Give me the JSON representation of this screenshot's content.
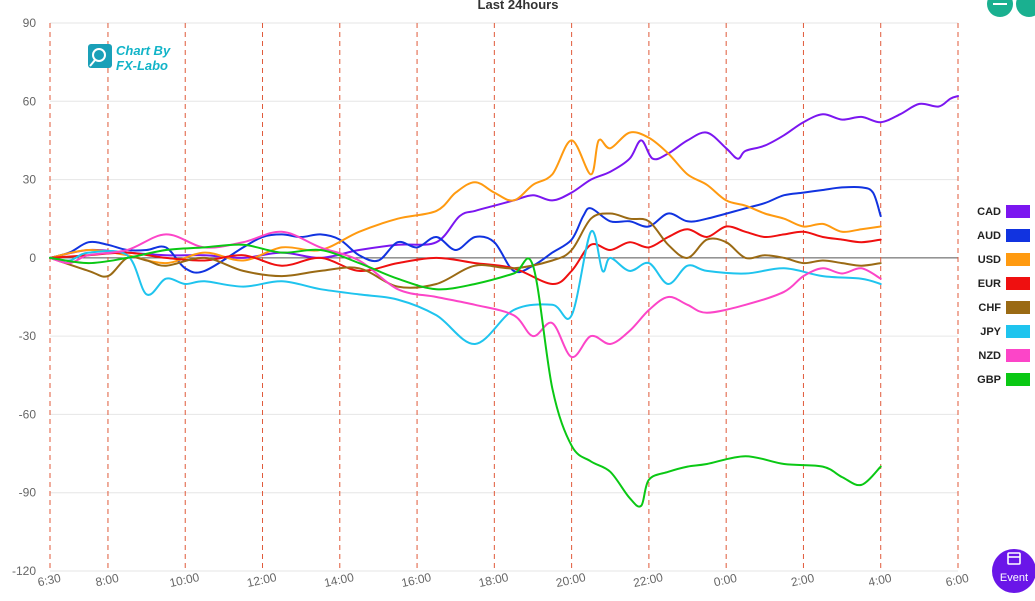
{
  "chart_data": {
    "type": "line",
    "title": "Last 24hours",
    "ylim": [
      -120,
      90
    ],
    "y_ticks": [
      90,
      60,
      30,
      0,
      -30,
      -60,
      -90,
      -120
    ],
    "y_tick_labels": [
      "90",
      "60",
      "30",
      "0",
      "-30",
      "-60",
      "-90",
      "-120"
    ],
    "x_ticks": [
      0,
      1.5,
      3.5,
      5.5,
      7.5,
      9.5,
      11.5,
      13.5,
      15.5,
      17.5,
      19.5,
      21.5,
      23.5
    ],
    "x_tick_labels": [
      "6:30",
      "8:00",
      "10:00",
      "12:00",
      "14:00",
      "16:00",
      "18:00",
      "20:00",
      "22:00",
      "0:00",
      "2:00",
      "4:00",
      "6:00"
    ],
    "grid": true,
    "legend_position": "right",
    "series": [
      {
        "name": "CAD",
        "color": "#7b16f0",
        "values": [
          [
            0,
            0
          ],
          [
            1,
            3
          ],
          [
            2,
            2
          ],
          [
            3,
            1
          ],
          [
            4,
            1
          ],
          [
            5,
            0
          ],
          [
            6,
            2
          ],
          [
            7,
            0
          ],
          [
            8,
            3
          ],
          [
            9,
            5
          ],
          [
            10,
            6
          ],
          [
            10.6,
            16
          ],
          [
            11,
            18
          ],
          [
            11.5,
            20
          ],
          [
            12,
            22
          ],
          [
            12.5,
            24
          ],
          [
            13,
            22
          ],
          [
            13.5,
            25
          ],
          [
            14,
            30
          ],
          [
            14.5,
            33
          ],
          [
            15,
            38
          ],
          [
            15.3,
            45
          ],
          [
            15.6,
            38
          ],
          [
            16,
            40
          ],
          [
            16.5,
            45
          ],
          [
            17,
            48
          ],
          [
            17.5,
            42
          ],
          [
            17.8,
            38
          ],
          [
            18,
            41
          ],
          [
            18.5,
            43
          ],
          [
            19,
            47
          ],
          [
            19.5,
            52
          ],
          [
            20,
            55
          ],
          [
            20.5,
            53
          ],
          [
            21,
            54
          ],
          [
            21.5,
            52
          ],
          [
            22,
            55
          ],
          [
            22.5,
            59
          ],
          [
            23,
            58
          ],
          [
            23.3,
            61
          ],
          [
            23.5,
            62
          ]
        ]
      },
      {
        "name": "AUD",
        "color": "#1133e0",
        "values": [
          [
            0,
            0
          ],
          [
            0.5,
            2
          ],
          [
            1,
            6
          ],
          [
            1.5,
            5
          ],
          [
            2,
            3
          ],
          [
            2.5,
            3
          ],
          [
            3,
            4
          ],
          [
            3.5,
            -4
          ],
          [
            4,
            -5
          ],
          [
            5,
            4
          ],
          [
            5.5,
            8
          ],
          [
            6,
            9
          ],
          [
            6.5,
            8
          ],
          [
            7,
            9
          ],
          [
            7.5,
            7
          ],
          [
            8,
            1
          ],
          [
            8.5,
            -1
          ],
          [
            9,
            6
          ],
          [
            9.5,
            4
          ],
          [
            10,
            8
          ],
          [
            10.5,
            3
          ],
          [
            11,
            8
          ],
          [
            11.5,
            6
          ],
          [
            12,
            -5
          ],
          [
            12.5,
            -3
          ],
          [
            13,
            2
          ],
          [
            13.5,
            7
          ],
          [
            13.8,
            16
          ],
          [
            14,
            19
          ],
          [
            14.5,
            14
          ],
          [
            15,
            14
          ],
          [
            15.5,
            12
          ],
          [
            16,
            17
          ],
          [
            16.5,
            14
          ],
          [
            17,
            15
          ],
          [
            18,
            19
          ],
          [
            18.5,
            21
          ],
          [
            19,
            24
          ],
          [
            19.5,
            25
          ],
          [
            20,
            26
          ],
          [
            20.5,
            27
          ],
          [
            21,
            27
          ],
          [
            21.3,
            25
          ],
          [
            21.5,
            16
          ]
        ]
      },
      {
        "name": "USD",
        "color": "#ff9a10",
        "values": [
          [
            0,
            0
          ],
          [
            1,
            3
          ],
          [
            2,
            1
          ],
          [
            3,
            -2
          ],
          [
            4,
            2
          ],
          [
            5,
            -1
          ],
          [
            6,
            4
          ],
          [
            7,
            3
          ],
          [
            8,
            10
          ],
          [
            9,
            15
          ],
          [
            10,
            18
          ],
          [
            10.5,
            25
          ],
          [
            11,
            29
          ],
          [
            11.5,
            25
          ],
          [
            12,
            22
          ],
          [
            12.5,
            28
          ],
          [
            13,
            32
          ],
          [
            13.5,
            45
          ],
          [
            14,
            32
          ],
          [
            14.2,
            45
          ],
          [
            14.5,
            42
          ],
          [
            15,
            48
          ],
          [
            15.5,
            46
          ],
          [
            16,
            40
          ],
          [
            16.5,
            32
          ],
          [
            17,
            28
          ],
          [
            17.5,
            22
          ],
          [
            18,
            20
          ],
          [
            18.5,
            17
          ],
          [
            19,
            15
          ],
          [
            19.5,
            12
          ],
          [
            20,
            13
          ],
          [
            20.5,
            10
          ],
          [
            21,
            11
          ],
          [
            21.5,
            12
          ]
        ]
      },
      {
        "name": "EUR",
        "color": "#ef1010",
        "values": [
          [
            0,
            0
          ],
          [
            1,
            1
          ],
          [
            2,
            2
          ],
          [
            3,
            0
          ],
          [
            4,
            -1
          ],
          [
            5,
            1
          ],
          [
            6,
            -3
          ],
          [
            7,
            0
          ],
          [
            8,
            -5
          ],
          [
            9,
            -2
          ],
          [
            10,
            0
          ],
          [
            11,
            -2
          ],
          [
            12,
            -4
          ],
          [
            13,
            -10
          ],
          [
            13.5,
            -5
          ],
          [
            14,
            5
          ],
          [
            14.5,
            3
          ],
          [
            15,
            6
          ],
          [
            15.5,
            4
          ],
          [
            16,
            8
          ],
          [
            16.5,
            11
          ],
          [
            17,
            8
          ],
          [
            17.5,
            12
          ],
          [
            18,
            10
          ],
          [
            18.5,
            8
          ],
          [
            19,
            9
          ],
          [
            19.5,
            10
          ],
          [
            20,
            8
          ],
          [
            20.5,
            7
          ],
          [
            21,
            6
          ],
          [
            21.5,
            7
          ]
        ]
      },
      {
        "name": "CHF",
        "color": "#9a6a14",
        "values": [
          [
            0,
            0
          ],
          [
            1,
            -5
          ],
          [
            1.5,
            -7
          ],
          [
            2,
            0
          ],
          [
            2.5,
            -1
          ],
          [
            3,
            -3
          ],
          [
            4,
            0
          ],
          [
            5,
            -5
          ],
          [
            6,
            -7
          ],
          [
            7,
            -5
          ],
          [
            8,
            -4
          ],
          [
            9,
            -11
          ],
          [
            10,
            -10
          ],
          [
            11,
            -3
          ],
          [
            12,
            -4
          ],
          [
            13,
            -1
          ],
          [
            13.5,
            3
          ],
          [
            14,
            15
          ],
          [
            14.5,
            17
          ],
          [
            15,
            15
          ],
          [
            15.5,
            14
          ],
          [
            16,
            5
          ],
          [
            16.5,
            0
          ],
          [
            17,
            7
          ],
          [
            17.5,
            6
          ],
          [
            18,
            0
          ],
          [
            18.5,
            1
          ],
          [
            19,
            0
          ],
          [
            19.5,
            -2
          ],
          [
            20,
            -1
          ],
          [
            20.5,
            -2
          ],
          [
            21,
            -3
          ],
          [
            21.5,
            -2
          ]
        ]
      },
      {
        "name": "JPY",
        "color": "#1fc4ee",
        "values": [
          [
            0,
            0
          ],
          [
            0.5,
            -1
          ],
          [
            1,
            2
          ],
          [
            2,
            1
          ],
          [
            2.5,
            -14
          ],
          [
            3,
            -8
          ],
          [
            3.5,
            -10
          ],
          [
            4,
            -9
          ],
          [
            5,
            -11
          ],
          [
            6,
            -9
          ],
          [
            7,
            -12
          ],
          [
            8,
            -14
          ],
          [
            9,
            -16
          ],
          [
            10,
            -22
          ],
          [
            11,
            -33
          ],
          [
            12,
            -20
          ],
          [
            13,
            -18
          ],
          [
            13.5,
            -22
          ],
          [
            14,
            10
          ],
          [
            14.3,
            -5
          ],
          [
            14.5,
            0
          ],
          [
            15,
            -5
          ],
          [
            15.5,
            -2
          ],
          [
            16,
            -10
          ],
          [
            16.5,
            -3
          ],
          [
            17,
            -5
          ],
          [
            18,
            -6
          ],
          [
            19,
            -4
          ],
          [
            20,
            -7
          ],
          [
            21,
            -8
          ],
          [
            21.5,
            -10
          ]
        ]
      },
      {
        "name": "NZD",
        "color": "#fc45c8",
        "values": [
          [
            0,
            0
          ],
          [
            0.5,
            -2
          ],
          [
            1,
            1
          ],
          [
            2,
            3
          ],
          [
            3,
            9
          ],
          [
            4,
            4
          ],
          [
            5,
            6
          ],
          [
            6,
            10
          ],
          [
            7,
            4
          ],
          [
            8,
            -1
          ],
          [
            9,
            -12
          ],
          [
            10,
            -15
          ],
          [
            11,
            -18
          ],
          [
            12,
            -22
          ],
          [
            12.5,
            -30
          ],
          [
            13,
            -25
          ],
          [
            13.5,
            -38
          ],
          [
            14,
            -30
          ],
          [
            14.5,
            -33
          ],
          [
            15,
            -28
          ],
          [
            15.5,
            -20
          ],
          [
            16,
            -15
          ],
          [
            16.5,
            -18
          ],
          [
            17,
            -21
          ],
          [
            18,
            -18
          ],
          [
            19,
            -13
          ],
          [
            19.5,
            -7
          ],
          [
            20,
            -4
          ],
          [
            20.5,
            -6
          ],
          [
            21,
            -4
          ],
          [
            21.5,
            -8
          ]
        ]
      },
      {
        "name": "GBP",
        "color": "#0ac814",
        "values": [
          [
            0,
            0
          ],
          [
            1,
            -2
          ],
          [
            2,
            0
          ],
          [
            3,
            3
          ],
          [
            4,
            4
          ],
          [
            5,
            5
          ],
          [
            6,
            2
          ],
          [
            7,
            3
          ],
          [
            8,
            -2
          ],
          [
            9,
            -8
          ],
          [
            10,
            -12
          ],
          [
            11,
            -10
          ],
          [
            12,
            -6
          ],
          [
            12.5,
            -3
          ],
          [
            13,
            -50
          ],
          [
            13.5,
            -72
          ],
          [
            14,
            -78
          ],
          [
            14.5,
            -82
          ],
          [
            15,
            -92
          ],
          [
            15.3,
            -95
          ],
          [
            15.5,
            -85
          ],
          [
            16,
            -82
          ],
          [
            16.5,
            -80
          ],
          [
            17,
            -79
          ],
          [
            18,
            -76
          ],
          [
            19,
            -79
          ],
          [
            20,
            -80
          ],
          [
            20.5,
            -84
          ],
          [
            21,
            -87
          ],
          [
            21.5,
            -80
          ]
        ]
      }
    ]
  },
  "logo": {
    "line1": "Chart By",
    "line2": "FX-Labo"
  },
  "controls": {
    "event_label": "Event"
  },
  "colors": {
    "grid_vertical": "#e05a3a",
    "grid_horizontal": "#e6e6e6",
    "zero_line": "#555555"
  }
}
